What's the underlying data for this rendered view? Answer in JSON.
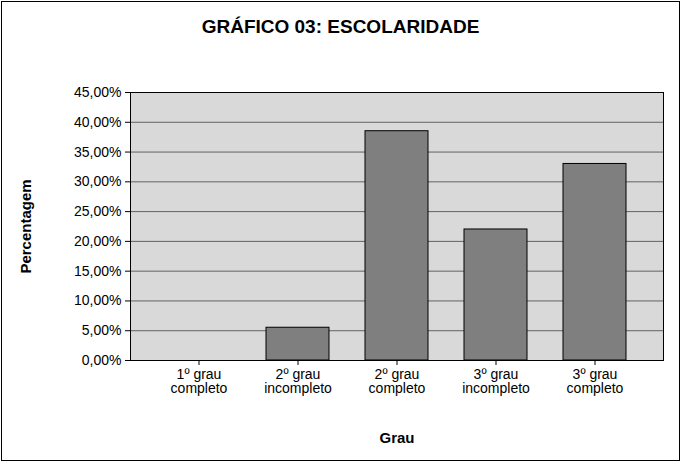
{
  "chart_data": {
    "type": "bar",
    "title": "GRÁFICO 03: ESCOLARIDADE",
    "x_label": "Grau",
    "y_label": "Percentagem",
    "categories": [
      "1º grau completo",
      "2º grau incompleto",
      "2º grau completo",
      "3º grau incompleto",
      "3º grau completo"
    ],
    "values": [
      0,
      5.5,
      38.5,
      22,
      33
    ],
    "color": "#7f7f7f",
    "ylim": [
      0,
      45
    ],
    "yticks": [
      {
        "value": 0,
        "label": "0,00%"
      },
      {
        "value": 5,
        "label": "5,00%"
      },
      {
        "value": 10,
        "label": "10,00%"
      },
      {
        "value": 15,
        "label": "15,00%"
      },
      {
        "value": 20,
        "label": "20,00%"
      },
      {
        "value": 25,
        "label": "25,00%"
      },
      {
        "value": 30,
        "label": "30,00%"
      },
      {
        "value": 35,
        "label": "35,00%"
      },
      {
        "value": 40,
        "label": "40,00%"
      },
      {
        "value": 45,
        "label": "45,00%"
      }
    ],
    "grid": true
  }
}
